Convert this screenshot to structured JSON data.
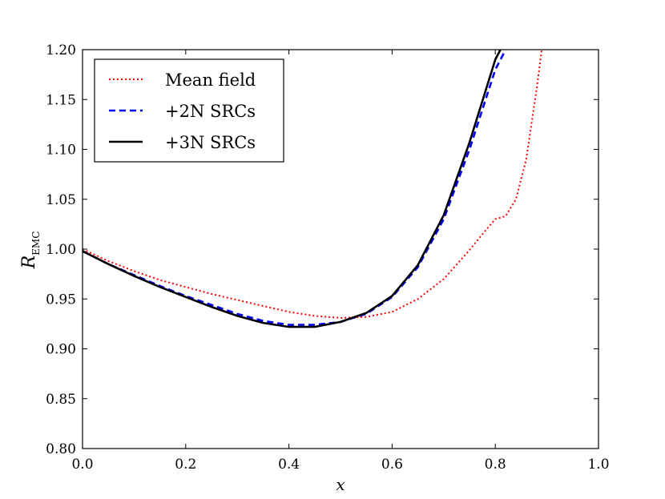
{
  "chart_data": {
    "type": "line",
    "title": "",
    "xlabel": "x",
    "ylabel_main": "R",
    "ylabel_sub": "EMC",
    "xlim": [
      0.0,
      1.0
    ],
    "ylim": [
      0.8,
      1.2
    ],
    "x_ticks": [
      0.0,
      0.2,
      0.4,
      0.6,
      0.8,
      1.0
    ],
    "x_tick_labels": [
      "0.0",
      "0.2",
      "0.4",
      "0.6",
      "0.8",
      "1.0"
    ],
    "y_ticks": [
      0.8,
      0.85,
      0.9,
      0.95,
      1.0,
      1.05,
      1.1,
      1.15,
      1.2
    ],
    "y_tick_labels": [
      "0.80",
      "0.85",
      "0.90",
      "0.95",
      "1.00",
      "1.05",
      "1.10",
      "1.15",
      "1.20"
    ],
    "grid": false,
    "legend_position": "top-left",
    "series": [
      {
        "name": "Mean field",
        "color": "#ff0000",
        "style": "dotted",
        "x": [
          0.0,
          0.05,
          0.1,
          0.15,
          0.2,
          0.25,
          0.3,
          0.35,
          0.4,
          0.45,
          0.5,
          0.55,
          0.6,
          0.65,
          0.7,
          0.75,
          0.78,
          0.8,
          0.82,
          0.84,
          0.86,
          0.88,
          0.89
        ],
        "y": [
          1.0,
          0.988,
          0.978,
          0.969,
          0.962,
          0.955,
          0.949,
          0.943,
          0.937,
          0.933,
          0.931,
          0.932,
          0.937,
          0.95,
          0.97,
          0.999,
          1.018,
          1.03,
          1.033,
          1.05,
          1.09,
          1.16,
          1.2
        ]
      },
      {
        "name": "+2N SRCs",
        "color": "#0000ff",
        "style": "dashed",
        "x": [
          0.0,
          0.05,
          0.1,
          0.15,
          0.2,
          0.25,
          0.3,
          0.35,
          0.4,
          0.45,
          0.5,
          0.55,
          0.6,
          0.65,
          0.7,
          0.75,
          0.8,
          0.82
        ],
        "y": [
          0.998,
          0.985,
          0.974,
          0.963,
          0.953,
          0.944,
          0.935,
          0.928,
          0.924,
          0.924,
          0.927,
          0.935,
          0.952,
          0.982,
          1.03,
          1.1,
          1.18,
          1.2
        ]
      },
      {
        "name": "+3N SRCs",
        "color": "#000000",
        "style": "solid",
        "x": [
          0.0,
          0.05,
          0.1,
          0.15,
          0.2,
          0.25,
          0.3,
          0.35,
          0.4,
          0.45,
          0.5,
          0.55,
          0.6,
          0.65,
          0.7,
          0.75,
          0.8,
          0.81
        ],
        "y": [
          0.998,
          0.985,
          0.973,
          0.962,
          0.952,
          0.942,
          0.933,
          0.926,
          0.922,
          0.922,
          0.927,
          0.936,
          0.953,
          0.984,
          1.034,
          1.107,
          1.19,
          1.2
        ]
      }
    ]
  }
}
